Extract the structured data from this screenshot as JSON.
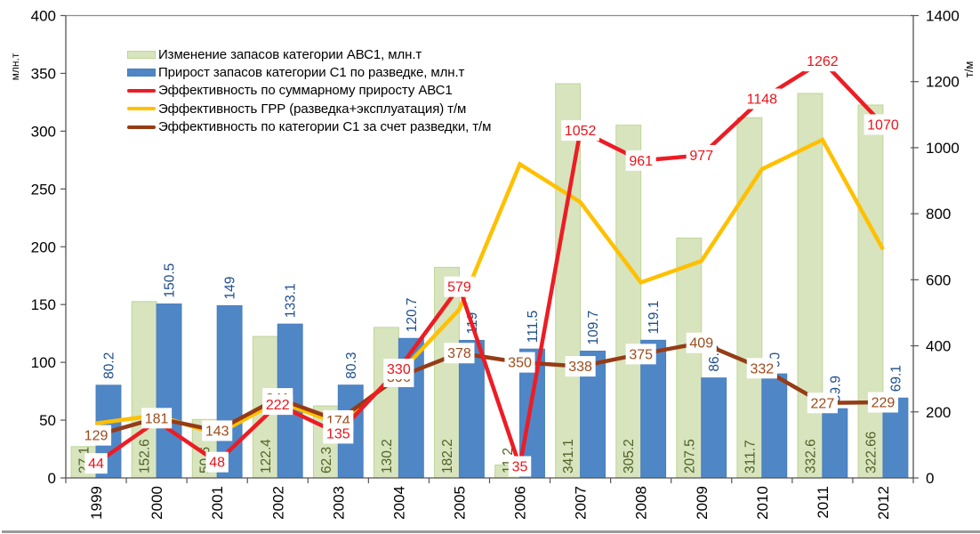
{
  "chart_data": {
    "type": "bar+line",
    "title": "",
    "categories": [
      "1999",
      "2000",
      "2001",
      "2002",
      "2003",
      "2004",
      "2005",
      "2006",
      "2007",
      "2008",
      "2009",
      "2010",
      "2011",
      "2012"
    ],
    "left_axis": {
      "title": "млн.т",
      "min": 0,
      "max": 400,
      "ticks": [
        0,
        50,
        100,
        150,
        200,
        250,
        300,
        350,
        400
      ]
    },
    "right_axis": {
      "title": "т/м",
      "min": 0,
      "max": 1400,
      "ticks": [
        0,
        200,
        400,
        600,
        800,
        1000,
        1200,
        1400
      ]
    },
    "grid": false,
    "legend": {
      "position": "top-left"
    },
    "series": [
      {
        "key": "abc1_change",
        "name": "Изменение запасов категории АВС1, млн.т",
        "type": "bar",
        "axis": "left",
        "color": "#d7e4bd",
        "border": "#c0d597",
        "label_color": "#4f6228",
        "values": [
          27.1,
          152.6,
          50.6,
          122.4,
          62.3,
          130.2,
          182.2,
          11.2,
          341.1,
          305.2,
          207.5,
          311.7,
          332.6,
          322.66
        ],
        "labels": [
          "27.1",
          "152.6",
          "50.6",
          "122.4",
          "62.3",
          "130.2",
          "182.2",
          "11.2",
          "341.1",
          "305.2",
          "207.5",
          "311.7",
          "332.6",
          "322.66"
        ]
      },
      {
        "key": "c1_growth",
        "name": "Прирост запасов категории С1 по разведке, млн.т",
        "type": "bar",
        "axis": "left",
        "color": "#4f86c6",
        "border": "#4a7fbe",
        "label_color": "#1f4e8c",
        "values": [
          80.2,
          150.5,
          149,
          133.1,
          80.3,
          120.7,
          119,
          111.5,
          109.7,
          119.1,
          86.5,
          90,
          59.9,
          69.1
        ],
        "labels": [
          "80.2",
          "150.5",
          "149",
          "133.1",
          "80.3",
          "120.7",
          "119",
          "111.5",
          "109.7",
          "119.1",
          "86.5",
          "90",
          "59.9",
          "69.1"
        ]
      },
      {
        "key": "eff_total",
        "name": "Эффективность по суммарному приросту АВС1",
        "type": "line",
        "axis": "right",
        "color": "#ed1c24",
        "label_color": "#e8141b",
        "values": [
          44,
          172,
          48,
          222,
          135,
          330,
          579,
          35,
          1052,
          961,
          977,
          1148,
          1262,
          1070
        ],
        "labels": [
          "44",
          null,
          "48",
          "222",
          "135",
          "330",
          "579",
          "35",
          "1052",
          "961",
          "977",
          "1148",
          "1262",
          "1070"
        ]
      },
      {
        "key": "eff_grr",
        "name": "Эффективность ГРР (разведка+эксплуатация) т/м",
        "type": "line",
        "axis": "right",
        "color": "#ffc000",
        "label_color": "#ffc000",
        "values": [
          165,
          190,
          132,
          232,
          165,
          315,
          510,
          950,
          835,
          592,
          657,
          935,
          1024,
          692
        ],
        "labels": null
      },
      {
        "key": "eff_c1",
        "name": "Эффективность по категории С1 за счет разведки, т/м",
        "type": "line",
        "axis": "right",
        "color": "#953c17",
        "label_color": "#9c4a1a",
        "values": [
          129,
          181,
          143,
          241,
          174,
          306,
          378,
          350,
          338,
          375,
          409,
          332,
          227,
          229
        ],
        "labels": [
          "129",
          "181",
          "143",
          "241",
          "174",
          "306",
          "378",
          "350",
          "338",
          "375",
          "409",
          "332",
          "227",
          "229"
        ]
      }
    ]
  }
}
